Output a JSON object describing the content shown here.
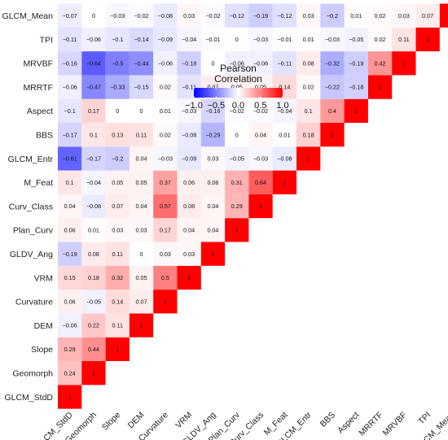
{
  "chart_data": {
    "type": "heatmap",
    "variables": [
      "GLCM_StdD",
      "Geomorph",
      "Slope",
      "DEM",
      "Curvature",
      "VRM",
      "GLDV_Ang",
      "Plan_Curv",
      "Curv_Class",
      "M_Feat",
      "GLCM_Entr",
      "BBS",
      "Aspect",
      "MRRTF",
      "MRVBF",
      "TPI",
      "GLCM_Mean"
    ],
    "values": [
      [
        "1",
        null,
        null,
        null,
        null,
        null,
        null,
        null,
        null,
        null,
        null,
        null,
        null,
        null,
        null,
        null,
        null
      ],
      [
        "0.24",
        "1",
        null,
        null,
        null,
        null,
        null,
        null,
        null,
        null,
        null,
        null,
        null,
        null,
        null,
        null,
        null
      ],
      [
        "0.29",
        "0.44",
        "1",
        null,
        null,
        null,
        null,
        null,
        null,
        null,
        null,
        null,
        null,
        null,
        null,
        null,
        null
      ],
      [
        "−0.06",
        "0.22",
        "0.11",
        "1",
        null,
        null,
        null,
        null,
        null,
        null,
        null,
        null,
        null,
        null,
        null,
        null,
        null
      ],
      [
        "0.06",
        "−0.05",
        "0.14",
        "0.07",
        "1",
        null,
        null,
        null,
        null,
        null,
        null,
        null,
        null,
        null,
        null,
        null,
        null
      ],
      [
        "0.15",
        "0.18",
        "0.32",
        "0.05",
        "0.5",
        "1",
        null,
        null,
        null,
        null,
        null,
        null,
        null,
        null,
        null,
        null,
        null
      ],
      [
        "−0.19",
        "0.08",
        "0.11",
        "0",
        "0.03",
        "0.03",
        "1",
        null,
        null,
        null,
        null,
        null,
        null,
        null,
        null,
        null,
        null
      ],
      [
        "0.06",
        "0.01",
        "0.03",
        "0.03",
        "0.17",
        "0.04",
        "0.04",
        "1",
        null,
        null,
        null,
        null,
        null,
        null,
        null,
        null,
        null
      ],
      [
        "0.04",
        "−0.08",
        "0.07",
        "0.04",
        "0.57",
        "0.08",
        "0.04",
        "0.29",
        "1",
        null,
        null,
        null,
        null,
        null,
        null,
        null,
        null
      ],
      [
        "0.1",
        "−0.04",
        "0.05",
        "0.05",
        "0.37",
        "0.06",
        "0.06",
        "0.31",
        "0.64",
        "1",
        null,
        null,
        null,
        null,
        null,
        null,
        null
      ],
      [
        "−0.61",
        "−0.17",
        "−0.2",
        "0.04",
        "−0.03",
        "−0.09",
        "0.03",
        "−0.05",
        "−0.03",
        "−0.08",
        "1",
        null,
        null,
        null,
        null,
        null,
        null
      ],
      [
        "−0.17",
        "0.1",
        "0.13",
        "0.11",
        "0.02",
        "−0.08",
        "−0.29",
        "0",
        "0.04",
        "0.01",
        "0.18",
        "1",
        null,
        null,
        null,
        null,
        null
      ],
      [
        "−0.1",
        "0.17",
        "0",
        "0",
        "0.01",
        "−0.03",
        "−0.16",
        "−0.02",
        "−0.02",
        "−0.04",
        "0.1",
        "0.4",
        "1",
        null,
        null,
        null,
        null
      ],
      [
        "−0.06",
        "−0.47",
        "−0.33",
        "−0.15",
        "0.02",
        "−0.11",
        "0.07",
        "0.05",
        "0.05",
        "0.14",
        "0.02",
        "−0.22",
        "−0.18",
        "1",
        null,
        null,
        null
      ],
      [
        "−0.16",
        "−0.64",
        "−0.5",
        "−0.44",
        "−0.06",
        "−0.18",
        "0",
        "−0.06",
        "−0.06",
        "−0.11",
        "0.08",
        "−0.32",
        "−0.19",
        "0.42",
        "1",
        null,
        null
      ],
      [
        "−0.11",
        "−0.06",
        "−0.1",
        "−0.14",
        "−0.09",
        "−0.04",
        "−0.01",
        "0",
        "−0.03",
        "−0.01",
        "0.01",
        "−0.03",
        "−0.05",
        "0.02",
        "0.11",
        "1",
        null
      ],
      [
        "−0.07",
        "0",
        "−0.03",
        "−0.02",
        "−0.08",
        "0.03",
        "−0.02",
        "−0.12",
        "−0.19",
        "−0.12",
        "0.03",
        "−0.2",
        "0.01",
        "0.02",
        "0.03",
        "0.07",
        "1"
      ]
    ],
    "legend_title": [
      "Pearson",
      "Correlation"
    ],
    "legend_ticks": [
      "−1.0",
      "−0.5",
      "0.0",
      "0.5",
      "1.0"
    ],
    "scale_range": [
      -1,
      1
    ],
    "colors": {
      "low": "#0000ff",
      "mid": "#ffffff",
      "high": "#ff0000"
    },
    "layout": "lower-triangle"
  }
}
